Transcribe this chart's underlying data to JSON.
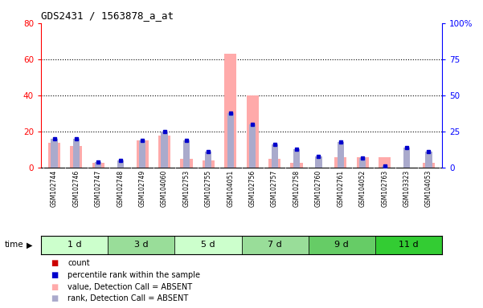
{
  "title": "GDS2431 / 1563878_a_at",
  "samples": [
    "GSM102744",
    "GSM102746",
    "GSM102747",
    "GSM102748",
    "GSM102749",
    "GSM104060",
    "GSM102753",
    "GSM102755",
    "GSM104051",
    "GSM102756",
    "GSM102757",
    "GSM102758",
    "GSM102760",
    "GSM102761",
    "GSM104052",
    "GSM102763",
    "GSM103323",
    "GSM104053"
  ],
  "time_groups": [
    {
      "label": "1 d",
      "start": 0,
      "end": 3,
      "color": "#ccffcc"
    },
    {
      "label": "3 d",
      "start": 3,
      "end": 6,
      "color": "#99dd99"
    },
    {
      "label": "5 d",
      "start": 6,
      "end": 9,
      "color": "#ccffcc"
    },
    {
      "label": "7 d",
      "start": 9,
      "end": 12,
      "color": "#99dd99"
    },
    {
      "label": "9 d",
      "start": 12,
      "end": 15,
      "color": "#66cc66"
    },
    {
      "label": "11 d",
      "start": 15,
      "end": 18,
      "color": "#33cc33"
    }
  ],
  "count_values": [
    1,
    1,
    1,
    0,
    1,
    1,
    1,
    1,
    0,
    1,
    1,
    1,
    0,
    1,
    1,
    1,
    0,
    1
  ],
  "rank_values": [
    20,
    20,
    4,
    5,
    19,
    25,
    19,
    11,
    38,
    30,
    16,
    13,
    8,
    18,
    7,
    1,
    14,
    11
  ],
  "absent_value_heights": [
    14,
    12,
    3,
    0,
    15,
    18,
    5,
    4,
    63,
    40,
    5,
    3,
    0,
    6,
    6,
    6,
    0,
    3
  ],
  "absent_rank_heights": [
    20,
    20,
    4,
    5,
    19,
    25,
    19,
    11,
    38,
    30,
    16,
    13,
    8,
    18,
    7,
    1,
    14,
    11
  ],
  "ylim_left": [
    0,
    80
  ],
  "ylim_right": [
    0,
    100
  ],
  "yticks_left": [
    0,
    20,
    40,
    60,
    80
  ],
  "yticks_right": [
    0,
    25,
    50,
    75,
    100
  ],
  "count_color": "#cc0000",
  "rank_color": "#0000cc",
  "absent_value_color": "#ffaaaa",
  "absent_rank_color": "#aaaacc",
  "xticklabel_bg": "#cccccc",
  "plot_bg": "#ffffff"
}
